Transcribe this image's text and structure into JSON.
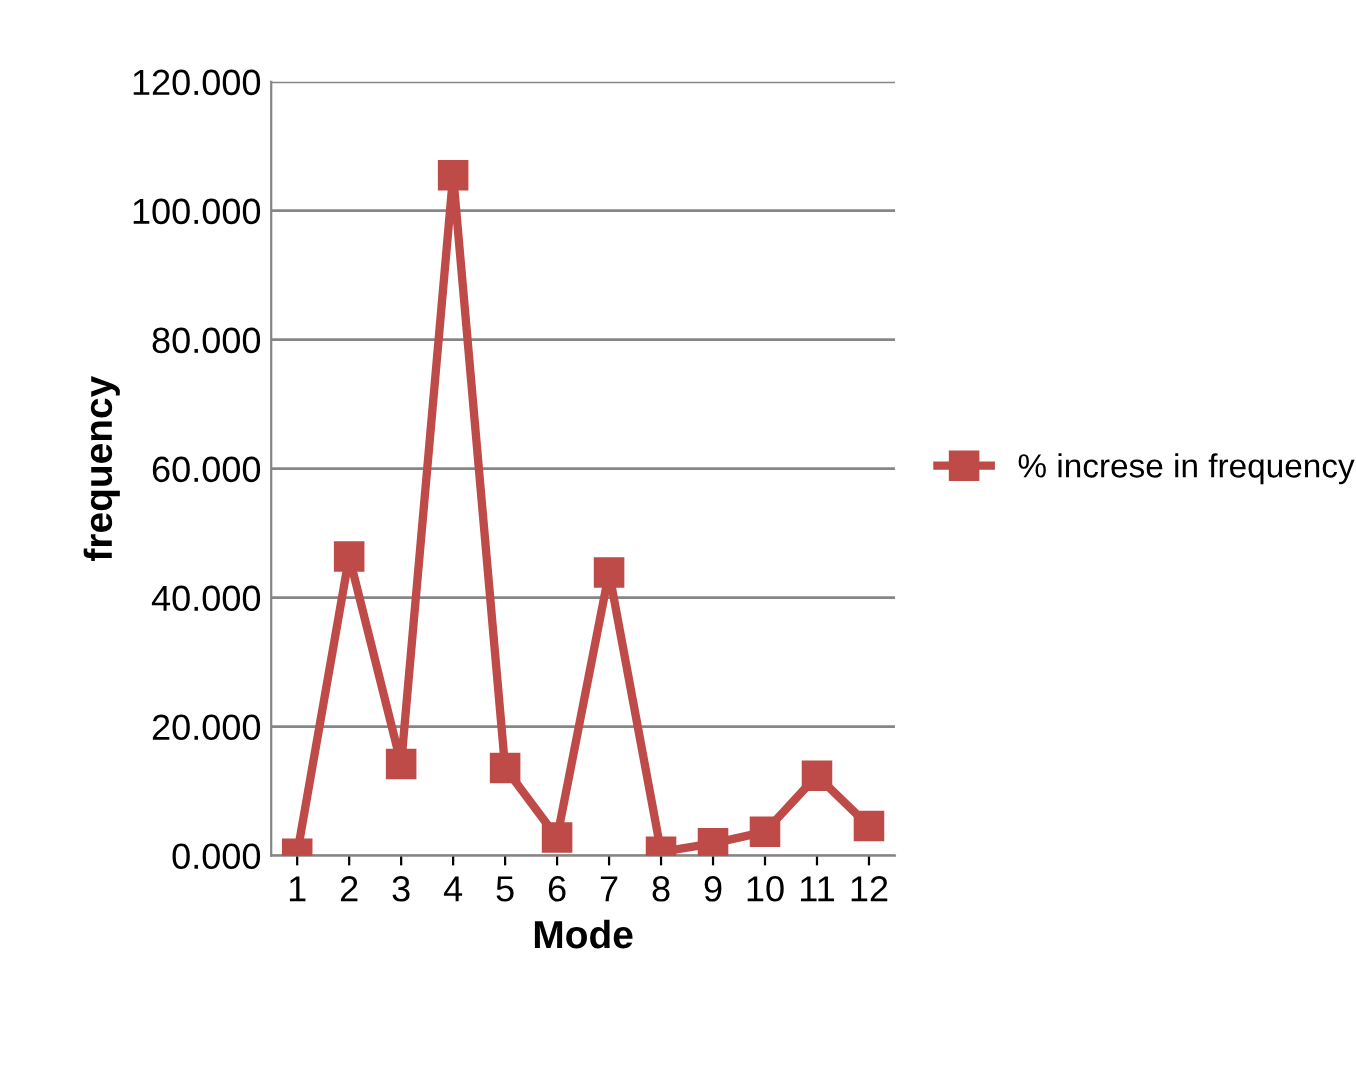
{
  "chart_data": {
    "type": "line",
    "xlabel": "Mode",
    "ylabel": "frequency",
    "categories": [
      "1",
      "2",
      "3",
      "4",
      "5",
      "6",
      "7",
      "8",
      "9",
      "10",
      "11",
      "12"
    ],
    "series": [
      {
        "name": "% increse in frequency",
        "color": "#be4b48",
        "values": [
          0.3,
          46.4,
          14.2,
          105.5,
          13.6,
          2.8,
          43.9,
          0.6,
          1.9,
          3.7,
          12.4,
          4.6
        ]
      }
    ],
    "ylim": [
      0,
      120
    ],
    "yticks": [
      {
        "value": 0,
        "label": "0.000"
      },
      {
        "value": 20,
        "label": "20.000"
      },
      {
        "value": 40,
        "label": "40.000"
      },
      {
        "value": 60,
        "label": "60.000"
      },
      {
        "value": 80,
        "label": "80.000"
      },
      {
        "value": 100,
        "label": "100.000"
      },
      {
        "value": 120,
        "label": "120.000"
      }
    ],
    "grid": "y",
    "legend": "right",
    "marker": "square",
    "line_style": "solid"
  }
}
